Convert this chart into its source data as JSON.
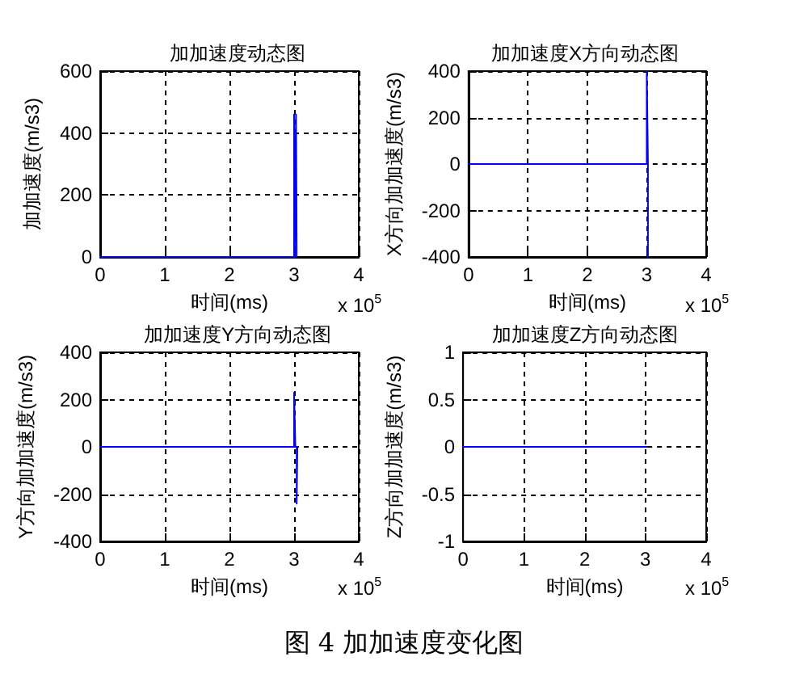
{
  "chart_data": [
    {
      "type": "line",
      "title": "加加速度动态图",
      "xlabel": "时间(ms)",
      "ylabel": "加加速度(m/s3)",
      "x": [
        0,
        3.0,
        3.0,
        3.01,
        3.03,
        3.04
      ],
      "series": [
        {
          "color": "#0000ff",
          "values": [
            0,
            0,
            460,
            0,
            460,
            0
          ]
        }
      ],
      "xlim": [
        0,
        4
      ],
      "xticks": [
        0,
        1,
        2,
        3,
        4
      ],
      "ylim": [
        0,
        600
      ],
      "yticks": [
        0,
        200,
        400,
        600
      ],
      "grid": true,
      "annotations": [
        "x 10$^{5}$"
      ]
    },
    {
      "type": "line",
      "title": "加加速度X方向动态图",
      "xlabel": "时间(ms)",
      "ylabel": "X方向加加速度(m/s3)",
      "x": [
        0,
        3.0,
        3.0,
        3.02,
        3.02
      ],
      "series": [
        {
          "color": "#0000ff",
          "values": [
            0,
            0,
            400,
            0,
            -400
          ]
        }
      ],
      "xlim": [
        0,
        4
      ],
      "xticks": [
        0,
        1,
        2,
        3,
        4
      ],
      "ylim": [
        -400,
        400
      ],
      "yticks": [
        -400,
        -200,
        0,
        200,
        400
      ],
      "grid": true,
      "annotations": [
        "x 10$^{5}$"
      ]
    },
    {
      "type": "line",
      "title": "加加速度Y方向动态图",
      "xlabel": "时间(ms)",
      "ylabel": "Y方向加加速度(m/s3)",
      "x": [
        0,
        3.0,
        3.0,
        3.02,
        3.04,
        3.04,
        3.05
      ],
      "series": [
        {
          "color": "#0000ff",
          "values": [
            0,
            0,
            230,
            0,
            0,
            -240,
            0
          ]
        }
      ],
      "xlim": [
        0,
        4
      ],
      "xticks": [
        0,
        1,
        2,
        3,
        4
      ],
      "ylim": [
        -400,
        400
      ],
      "yticks": [
        -400,
        -200,
        0,
        200,
        400
      ],
      "grid": true,
      "annotations": [
        "x 10$^{5}$"
      ]
    },
    {
      "type": "line",
      "title": "加加速度Z方向动态图",
      "xlabel": "时间(ms)",
      "ylabel": "Z方向加加速度(m/s3)",
      "x": [
        0,
        3.03
      ],
      "series": [
        {
          "color": "#0000ff",
          "values": [
            0,
            0
          ]
        }
      ],
      "xlim": [
        0,
        4
      ],
      "xticks": [
        0,
        1,
        2,
        3,
        4
      ],
      "ylim": [
        -1,
        1
      ],
      "yticks": [
        -1,
        -0.5,
        0,
        0.5,
        1
      ],
      "grid": true,
      "annotations": [
        "x 10$^{5}$",
        "图 4  加加速度变化图"
      ]
    }
  ]
}
